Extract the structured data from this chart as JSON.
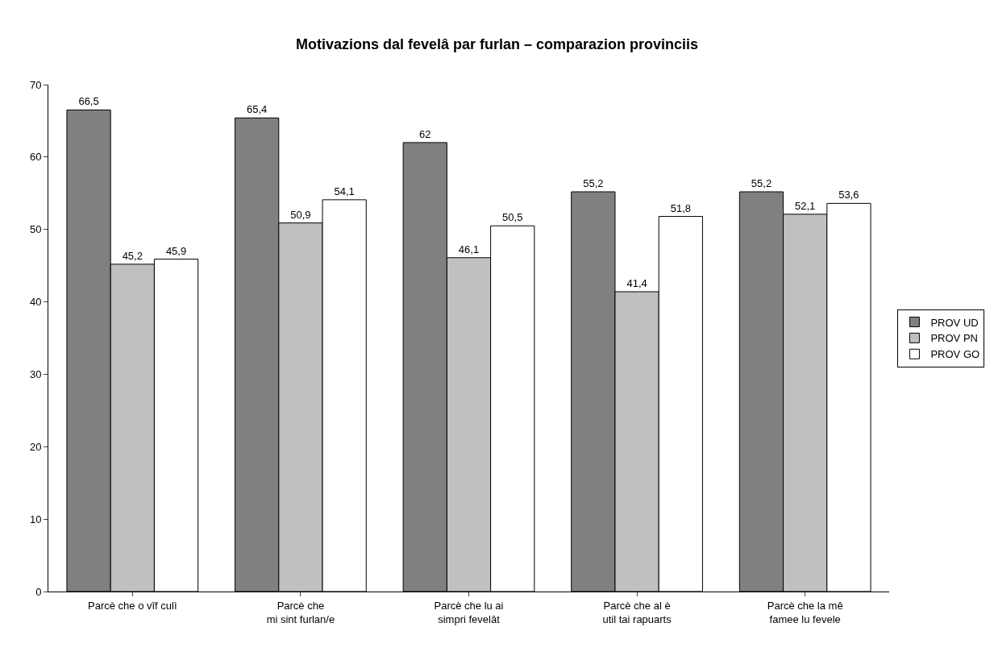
{
  "chart_data": {
    "type": "bar",
    "title": "Motivazions dal fevelâ par furlan – comparazion provinciis",
    "categories": [
      "Parcè che o vîf culì",
      "Parcè che\nmi sint furlan/e",
      "Parcè che lu ai\nsimpri fevelât",
      "Parcè che al è\nutil tai rapuarts",
      "Parcè che la mê\nfamee lu fevele"
    ],
    "series": [
      {
        "name": "PROV UD",
        "color": "#808080",
        "values": [
          66.5,
          65.4,
          62,
          55.2,
          55.2
        ],
        "value_labels": [
          "66,5",
          "65,4",
          "62",
          "55,2",
          "55,2"
        ]
      },
      {
        "name": "PROV PN",
        "color": "#c0c0c0",
        "values": [
          45.2,
          50.9,
          46.1,
          41.4,
          52.1
        ],
        "value_labels": [
          "45,2",
          "50,9",
          "46,1",
          "41,4",
          "52,1"
        ]
      },
      {
        "name": "PROV GO",
        "color": "#ffffff",
        "values": [
          45.9,
          54.1,
          50.5,
          51.8,
          53.6
        ],
        "value_labels": [
          "45,9",
          "54,1",
          "50,5",
          "51,8",
          "53,6"
        ]
      }
    ],
    "ylim": [
      0,
      70
    ],
    "yticks": [
      0,
      10,
      20,
      30,
      40,
      50,
      60,
      70
    ],
    "grid": false,
    "legend": "right"
  }
}
